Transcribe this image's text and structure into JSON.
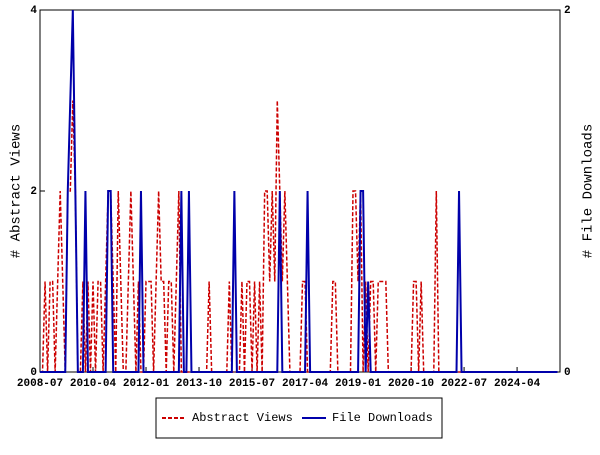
{
  "chart_data": {
    "type": "line",
    "y_label": "# Abstract Views",
    "y2_label": "# File Downloads",
    "x_start": "2008-07",
    "x_count": 206,
    "xlim": [
      "2008-07",
      "2025-09"
    ],
    "xticks": [
      "2008-07",
      "2010-04",
      "2012-01",
      "2013-10",
      "2015-07",
      "2017-04",
      "2019-01",
      "2020-10",
      "2022-07",
      "2024-04"
    ],
    "ylim": [
      0,
      4
    ],
    "yticks": [
      0,
      2,
      4
    ],
    "y2lim": [
      0,
      2
    ],
    "y2ticks": [
      0,
      2
    ],
    "legend": "bottom",
    "series": [
      {
        "name": "Abstract Views",
        "color": "#cc0000",
        "dash": true,
        "values": [
          0,
          0,
          1,
          0,
          1,
          1,
          0,
          1,
          2,
          1,
          0,
          2,
          2,
          3,
          2,
          0,
          0,
          1,
          0,
          1,
          0,
          1,
          0,
          1,
          1,
          0,
          1,
          2,
          2,
          1,
          0,
          2,
          1,
          0,
          0,
          1,
          2,
          1,
          0,
          1,
          0,
          0,
          1,
          1,
          1,
          0,
          1,
          2,
          1,
          1,
          0,
          1,
          1,
          0,
          1,
          2,
          0,
          0,
          0,
          0,
          0,
          0,
          0,
          0,
          0,
          0,
          0,
          1,
          0,
          0,
          0,
          0,
          0,
          0,
          0,
          1,
          0,
          0,
          0,
          0,
          1,
          0,
          1,
          1,
          0,
          1,
          0,
          1,
          0,
          2,
          2,
          1,
          2,
          1,
          3,
          2,
          1,
          2,
          1,
          0,
          0,
          0,
          0,
          0,
          1,
          1,
          0,
          0,
          0,
          0,
          0,
          0,
          0,
          0,
          0,
          0,
          1,
          1,
          0,
          0,
          0,
          0,
          0,
          0,
          2,
          2,
          1,
          2,
          0,
          1,
          0,
          1,
          1,
          0,
          1,
          1,
          1,
          1,
          0,
          0,
          0,
          0,
          0,
          0,
          0,
          0,
          0,
          0,
          1,
          1,
          0,
          1,
          0,
          0,
          0,
          0,
          0,
          2,
          0,
          0,
          0,
          0,
          0,
          0,
          0,
          0,
          0,
          0,
          0,
          0,
          0,
          0,
          0,
          0,
          0,
          0,
          0,
          0,
          0,
          0,
          0,
          0,
          0,
          0,
          0,
          0,
          0,
          0,
          0,
          0,
          0,
          0,
          0,
          0,
          0,
          0,
          0,
          0,
          0,
          0,
          0,
          0,
          0,
          0,
          0,
          0
        ]
      },
      {
        "name": "File Downloads",
        "color": "#0000aa",
        "axis": "y2",
        "values": [
          0,
          0,
          0,
          0,
          0,
          0,
          0,
          0,
          0,
          0,
          0,
          1,
          1.5,
          2,
          1,
          0,
          0,
          0,
          1,
          0,
          0,
          0,
          0,
          0,
          0,
          0,
          0,
          1,
          1,
          0,
          0,
          0,
          0,
          0,
          0,
          0,
          0,
          0,
          0,
          0,
          1,
          0,
          0,
          0,
          0,
          0,
          0,
          0,
          0,
          0,
          0,
          0,
          0,
          0,
          0,
          0,
          1,
          0,
          0,
          1,
          0,
          0,
          0,
          0,
          0,
          0,
          0,
          0,
          0,
          0,
          0,
          0,
          0,
          0,
          0,
          0,
          0,
          1,
          0,
          0,
          0,
          0,
          0,
          0,
          0,
          0,
          0,
          0,
          0,
          0,
          0,
          0,
          0,
          0,
          0,
          1,
          0,
          0,
          0,
          0,
          0,
          0,
          0,
          0,
          0,
          0,
          1,
          0,
          0,
          0,
          0,
          0,
          0,
          0,
          0,
          0,
          0,
          0,
          0,
          0,
          0,
          0,
          0,
          0,
          0,
          0,
          0,
          1,
          1,
          0,
          0.5,
          0,
          0,
          0,
          0,
          0,
          0,
          0,
          0,
          0,
          0,
          0,
          0,
          0,
          0,
          0,
          0,
          0,
          0,
          0,
          0,
          0,
          0,
          0,
          0,
          0,
          0,
          0,
          0,
          0,
          0,
          0,
          0,
          0,
          0,
          0,
          1,
          0,
          0,
          0,
          0,
          0,
          0,
          0,
          0,
          0,
          0,
          0,
          0,
          0,
          0,
          0,
          0,
          0,
          0,
          0,
          0,
          0,
          0,
          0,
          0,
          0,
          0,
          0,
          0,
          0,
          0,
          0,
          0,
          0,
          0,
          0,
          0,
          0,
          0,
          0
        ]
      }
    ]
  }
}
